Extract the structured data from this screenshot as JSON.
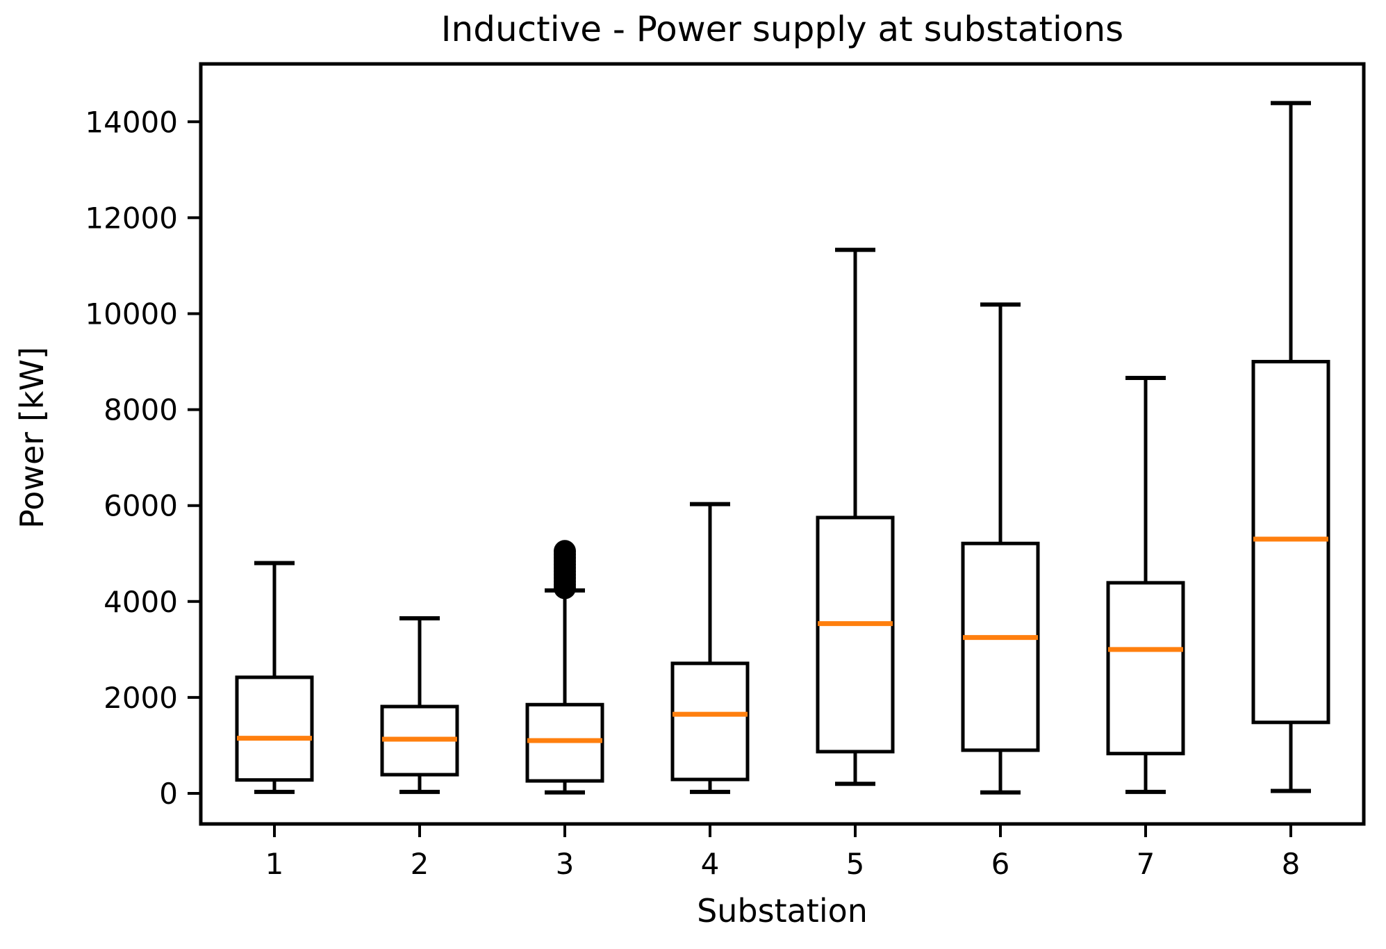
{
  "title": "Inductive - Power supply at substations",
  "axes": {
    "x_label": "Substation",
    "y_label": "Power [kW]",
    "y_ticks": [
      0,
      2000,
      4000,
      6000,
      8000,
      10000,
      12000,
      14000
    ],
    "x_tick_labels": [
      "1",
      "2",
      "3",
      "4",
      "5",
      "6",
      "7",
      "8"
    ]
  },
  "colors": {
    "box_stroke": "#000000",
    "median": "#ff7f0e",
    "background": "#ffffff"
  },
  "chart_data": {
    "type": "box",
    "title": "Inductive - Power supply at substations",
    "xlabel": "Substation",
    "ylabel": "Power [kW]",
    "categories": [
      "1",
      "2",
      "3",
      "4",
      "5",
      "6",
      "7",
      "8"
    ],
    "ylim": [
      -640,
      15220
    ],
    "yticks": [
      0,
      2000,
      4000,
      6000,
      8000,
      10000,
      12000,
      14000
    ],
    "grid": false,
    "legend": "none",
    "median_color": "#ff7f0e",
    "series": [
      {
        "label": "1",
        "whislo": 30,
        "q1": 280,
        "med": 1150,
        "q3": 2420,
        "whishi": 4800,
        "fliers": []
      },
      {
        "label": "2",
        "whislo": 30,
        "q1": 390,
        "med": 1130,
        "q3": 1810,
        "whishi": 3650,
        "fliers": []
      },
      {
        "label": "3",
        "whislo": 20,
        "q1": 260,
        "med": 1100,
        "q3": 1850,
        "whishi": 4230,
        "fliers": [
          4280,
          4350,
          4420,
          4490,
          4560,
          4630,
          4700,
          4770,
          4840,
          4910,
          4980,
          5050
        ]
      },
      {
        "label": "4",
        "whislo": 30,
        "q1": 290,
        "med": 1650,
        "q3": 2710,
        "whishi": 6030,
        "fliers": []
      },
      {
        "label": "5",
        "whislo": 200,
        "q1": 870,
        "med": 3540,
        "q3": 5750,
        "whishi": 11330,
        "fliers": []
      },
      {
        "label": "6",
        "whislo": 20,
        "q1": 900,
        "med": 3250,
        "q3": 5210,
        "whishi": 10190,
        "fliers": []
      },
      {
        "label": "7",
        "whislo": 30,
        "q1": 830,
        "med": 3000,
        "q3": 4390,
        "whishi": 8660,
        "fliers": []
      },
      {
        "label": "8",
        "whislo": 50,
        "q1": 1480,
        "med": 5300,
        "q3": 9000,
        "whishi": 14390,
        "fliers": []
      }
    ]
  }
}
